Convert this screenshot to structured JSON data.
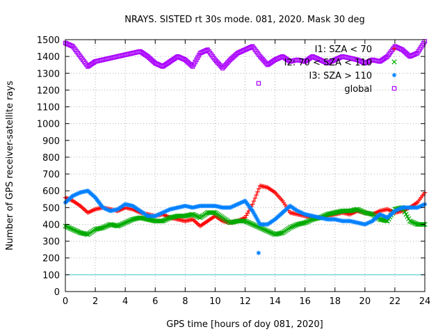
{
  "chart_data": {
    "type": "scatter",
    "title": "NRAYS. SISTED rt 30s mode. 081, 2020. Mask 30 deg",
    "xlabel": "GPS time [hours of doy 081, 2020]",
    "ylabel": "Number of GPS receiver-satellite rays",
    "xlim": [
      0,
      24
    ],
    "ylim": [
      0,
      1500
    ],
    "x_ticks": [
      "0",
      "2",
      "4",
      "6",
      "8",
      "10",
      "12",
      "14",
      "16",
      "18",
      "20",
      "22",
      "24"
    ],
    "y_ticks": [
      "0",
      "100",
      "200",
      "300",
      "400",
      "500",
      "600",
      "700",
      "800",
      "900",
      "1000",
      "1100",
      "1200",
      "1300",
      "1400",
      "1500"
    ],
    "grid": true,
    "legend_position": "top-right",
    "reference_line": {
      "y": 100,
      "color": "#33cccc"
    },
    "series": [
      {
        "name": "I1: SZA < 70",
        "marker": "plus",
        "color": "#ff0000",
        "x": [
          0,
          0.5,
          1,
          1.5,
          2,
          2.5,
          3,
          3.5,
          4,
          4.5,
          5,
          5.5,
          6,
          6.5,
          7,
          7.5,
          8,
          8.5,
          9,
          9.5,
          10,
          10.5,
          11,
          11.5,
          12,
          12.5,
          13,
          13.5,
          14,
          14.5,
          15,
          15.5,
          16,
          16.5,
          17,
          17.5,
          18,
          18.5,
          19,
          19.5,
          20,
          20.5,
          21,
          21.5,
          22,
          22.5,
          23,
          23.5,
          24
        ],
        "y": [
          560,
          540,
          510,
          470,
          490,
          500,
          490,
          480,
          500,
          490,
          470,
          460,
          450,
          460,
          440,
          430,
          420,
          430,
          390,
          420,
          450,
          420,
          410,
          420,
          440,
          520,
          630,
          620,
          590,
          540,
          470,
          460,
          450,
          440,
          440,
          450,
          460,
          470,
          460,
          480,
          470,
          460,
          480,
          490,
          470,
          480,
          500,
          530,
          590
        ]
      },
      {
        "name": "I2: 70 < SZA < 110",
        "marker": "x",
        "color": "#00aa00",
        "x": [
          0,
          0.5,
          1,
          1.5,
          2,
          2.5,
          3,
          3.5,
          4,
          4.5,
          5,
          5.5,
          6,
          6.5,
          7,
          7.5,
          8,
          8.5,
          9,
          9.5,
          10,
          10.5,
          11,
          11.5,
          12,
          12.5,
          13,
          13.5,
          14,
          14.5,
          15,
          15.5,
          16,
          16.5,
          17,
          17.5,
          18,
          18.5,
          19,
          19.5,
          20,
          20.5,
          21,
          21.5,
          22,
          22.5,
          23,
          23.5,
          24
        ],
        "y": [
          390,
          370,
          350,
          340,
          370,
          380,
          400,
          390,
          410,
          430,
          440,
          430,
          420,
          420,
          440,
          450,
          450,
          460,
          440,
          470,
          470,
          440,
          410,
          420,
          420,
          400,
          380,
          360,
          340,
          350,
          380,
          400,
          410,
          430,
          440,
          460,
          470,
          480,
          480,
          490,
          470,
          460,
          430,
          420,
          490,
          500,
          420,
          400,
          400
        ]
      },
      {
        "name": "I3: SZA > 110",
        "marker": "asterisk",
        "color": "#0080ff",
        "x": [
          0,
          0.5,
          1,
          1.5,
          2,
          2.5,
          3,
          3.5,
          4,
          4.5,
          5,
          5.5,
          6,
          6.5,
          7,
          7.5,
          8,
          8.5,
          9,
          9.5,
          10,
          10.5,
          11,
          11.5,
          12,
          12.5,
          13,
          13.5,
          14,
          14.5,
          15,
          15.5,
          16,
          16.5,
          17,
          17.5,
          18,
          18.5,
          19,
          19.5,
          20,
          20.5,
          21,
          21.5,
          22,
          22.5,
          23,
          23.5,
          24
        ],
        "y": [
          530,
          570,
          590,
          600,
          560,
          500,
          480,
          490,
          520,
          510,
          480,
          450,
          450,
          470,
          490,
          500,
          510,
          500,
          510,
          510,
          510,
          500,
          500,
          520,
          540,
          480,
          400,
          400,
          430,
          470,
          510,
          480,
          460,
          450,
          440,
          430,
          430,
          420,
          420,
          410,
          400,
          420,
          460,
          440,
          480,
          500,
          500,
          500,
          520
        ]
      },
      {
        "name": "global",
        "marker": "square",
        "color": "#aa00ff",
        "x": [
          0,
          0.5,
          1,
          1.5,
          2,
          2.5,
          3,
          3.5,
          4,
          4.5,
          5,
          5.5,
          6,
          6.5,
          7,
          7.5,
          8,
          8.5,
          9,
          9.5,
          10,
          10.5,
          11,
          11.5,
          12,
          12.5,
          13,
          13.5,
          14,
          14.5,
          15,
          15.5,
          16,
          16.5,
          17,
          17.5,
          18,
          18.5,
          19,
          19.5,
          20,
          20.5,
          21,
          21.5,
          22,
          22.5,
          23,
          23.5,
          24
        ],
        "y": [
          1480,
          1460,
          1400,
          1340,
          1370,
          1380,
          1390,
          1400,
          1410,
          1420,
          1430,
          1400,
          1360,
          1340,
          1370,
          1400,
          1380,
          1340,
          1420,
          1440,
          1380,
          1330,
          1380,
          1420,
          1440,
          1460,
          1400,
          1350,
          1380,
          1400,
          1370,
          1380,
          1370,
          1400,
          1380,
          1360,
          1380,
          1400,
          1390,
          1380,
          1360,
          1380,
          1370,
          1400,
          1460,
          1440,
          1400,
          1420,
          1490
        ]
      }
    ],
    "outliers": [
      {
        "series": "I3: SZA > 110",
        "x": 12.9,
        "y": 230
      },
      {
        "series": "global",
        "x": 12.9,
        "y": 1240
      }
    ]
  }
}
